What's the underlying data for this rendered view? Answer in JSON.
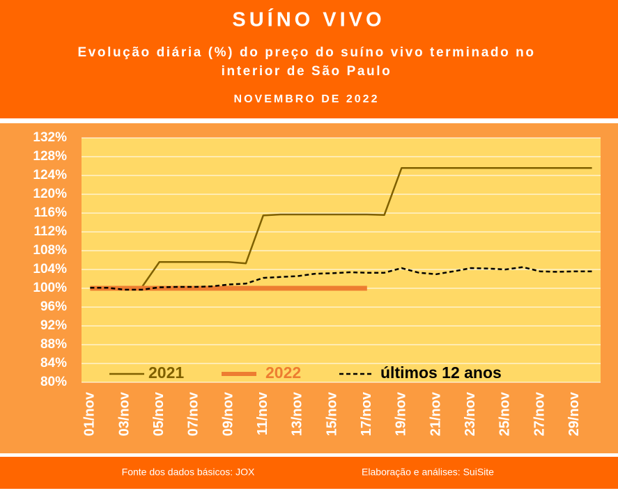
{
  "chart_data": {
    "type": "line",
    "title": "SUÍNO VIVO",
    "subtitle_lines": [
      "Evolução diária (%) do preço do suíno vivo terminado no",
      "interior de São Paulo"
    ],
    "period": "NOVEMBRO DE 2022",
    "source": "Fonte dos dados básicos: JOX",
    "credit": "Elaboração e análises: SuiSite",
    "categories": [
      "01/nov",
      null,
      "03/nov",
      null,
      "05/nov",
      null,
      "07/nov",
      null,
      "09/nov",
      null,
      "11/nov",
      null,
      "13/nov",
      null,
      "15/nov",
      null,
      "17/nov",
      null,
      "19/nov",
      null,
      "21/nov",
      null,
      "23/nov",
      null,
      "25/nov",
      null,
      "27/nov",
      null,
      "29/nov",
      null
    ],
    "series": [
      {
        "name": "2021",
        "color": "#7f6000",
        "line_style": "solid",
        "line_width": 2.5,
        "values": [
          100,
          100,
          100,
          100.3,
          105.6,
          105.6,
          105.6,
          105.6,
          105.6,
          105.3,
          115.5,
          115.7,
          115.7,
          115.7,
          115.7,
          115.7,
          115.7,
          115.6,
          125.6,
          125.6,
          125.6,
          125.6,
          125.6,
          125.6,
          125.6,
          125.6,
          125.6,
          125.6,
          125.6,
          125.6
        ]
      },
      {
        "name": "2022",
        "color": "#ed7d31",
        "line_style": "solid",
        "line_width": 7,
        "values": [
          100,
          100,
          100,
          100,
          100,
          100,
          100,
          100,
          100,
          100,
          100,
          100,
          100,
          100,
          100,
          100,
          100,
          null,
          null,
          null,
          null,
          null,
          null,
          null,
          null,
          null,
          null,
          null,
          null,
          null
        ]
      },
      {
        "name": "últimos 12 anos",
        "color": "#000000",
        "line_style": "dashed",
        "line_width": 2.5,
        "values": [
          100.1,
          100.1,
          99.7,
          99.7,
          100.2,
          100.3,
          100.3,
          100.4,
          100.8,
          101.0,
          102.2,
          102.4,
          102.6,
          103.1,
          103.2,
          103.4,
          103.3,
          103.3,
          104.3,
          103.3,
          103.0,
          103.6,
          104.3,
          104.2,
          104.0,
          104.5,
          103.6,
          103.5,
          103.6,
          103.6
        ]
      }
    ],
    "ylim": [
      80,
      132
    ],
    "yticks": [
      {
        "value": 80,
        "label": "80%"
      },
      {
        "value": 84,
        "label": "84%"
      },
      {
        "value": 88,
        "label": "88%"
      },
      {
        "value": 92,
        "label": "92%"
      },
      {
        "value": 96,
        "label": "96%"
      },
      {
        "value": 100,
        "label": "100%"
      },
      {
        "value": 104,
        "label": "104%"
      },
      {
        "value": 108,
        "label": "108%"
      },
      {
        "value": 112,
        "label": "112%"
      },
      {
        "value": 116,
        "label": "116%"
      },
      {
        "value": 120,
        "label": "120%"
      },
      {
        "value": 124,
        "label": "124%"
      },
      {
        "value": 128,
        "label": "128%"
      },
      {
        "value": 132,
        "label": "132%"
      }
    ],
    "grid": true
  }
}
